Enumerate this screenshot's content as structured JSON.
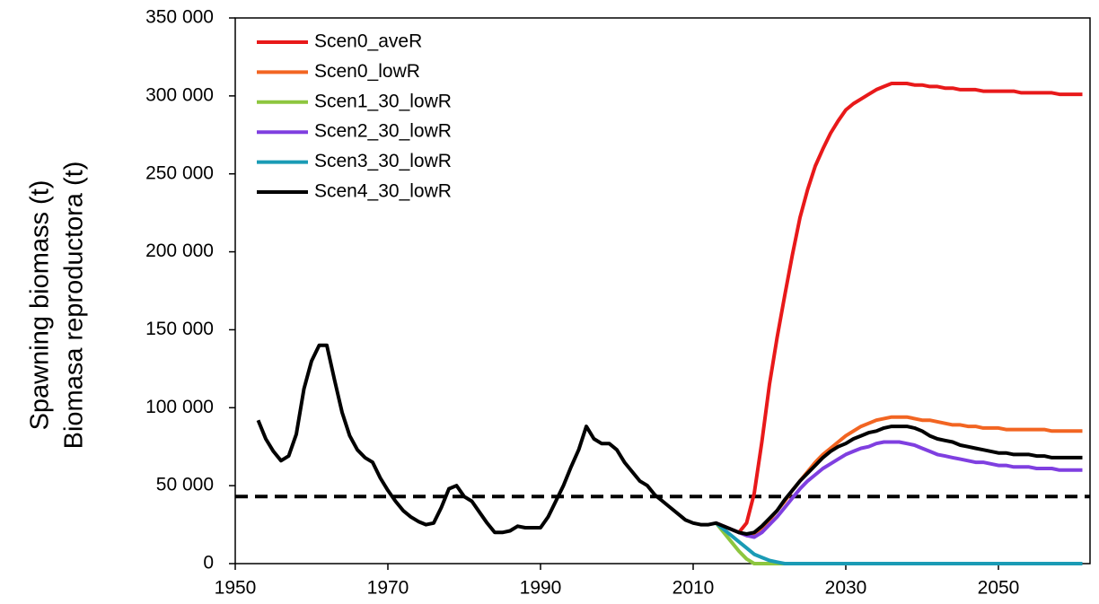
{
  "chart_data": {
    "type": "line",
    "ylabel": [
      "Spawning  biomass (t)",
      "Biomasa reproductora (t)"
    ],
    "xlim": [
      1950,
      2062
    ],
    "xticks": [
      1950,
      1970,
      1990,
      2010,
      2030,
      2050
    ],
    "ylim": [
      0,
      350000
    ],
    "yticks": [
      0,
      {
        "value": 50000,
        "label": "50 000"
      },
      {
        "value": 100000,
        "label": "100 000"
      },
      {
        "value": 150000,
        "label": "150 000"
      },
      {
        "value": 200000,
        "label": "200 000"
      },
      {
        "value": 250000,
        "label": "250 000"
      },
      {
        "value": 300000,
        "label": "300 000"
      },
      {
        "value": 350000,
        "label": "350 000"
      }
    ],
    "legend": "top-left",
    "hlines": [
      {
        "value": 43000,
        "color": "#000000",
        "dashed": true
      }
    ],
    "x": [
      1953,
      1954,
      1955,
      1956,
      1957,
      1958,
      1959,
      1960,
      1961,
      1962,
      1963,
      1964,
      1965,
      1966,
      1967,
      1968,
      1969,
      1970,
      1971,
      1972,
      1973,
      1974,
      1975,
      1976,
      1977,
      1978,
      1979,
      1980,
      1981,
      1982,
      1983,
      1984,
      1985,
      1986,
      1987,
      1988,
      1989,
      1990,
      1991,
      1992,
      1993,
      1994,
      1995,
      1996,
      1997,
      1998,
      1999,
      2000,
      2001,
      2002,
      2003,
      2004,
      2005,
      2006,
      2007,
      2008,
      2009,
      2010,
      2011,
      2012,
      2013,
      2014,
      2015,
      2016,
      2017,
      2018,
      2019,
      2020,
      2021,
      2022,
      2023,
      2024,
      2025,
      2026,
      2027,
      2028,
      2029,
      2030,
      2031,
      2032,
      2033,
      2034,
      2035,
      2036,
      2037,
      2038,
      2039,
      2040,
      2041,
      2042,
      2043,
      2044,
      2045,
      2046,
      2047,
      2048,
      2049,
      2050,
      2051,
      2052,
      2053,
      2054,
      2055,
      2056,
      2057,
      2058,
      2059,
      2060,
      2061
    ],
    "series": [
      {
        "name": "Scen0_aveR",
        "color": "#e8191a",
        "values": [
          null,
          null,
          null,
          null,
          null,
          null,
          null,
          null,
          null,
          null,
          null,
          null,
          null,
          null,
          null,
          null,
          null,
          null,
          null,
          null,
          null,
          null,
          null,
          null,
          null,
          null,
          null,
          null,
          null,
          null,
          null,
          null,
          null,
          null,
          null,
          null,
          null,
          null,
          null,
          null,
          null,
          null,
          null,
          null,
          null,
          null,
          null,
          null,
          null,
          null,
          null,
          null,
          null,
          null,
          null,
          null,
          null,
          null,
          null,
          null,
          26000,
          24000,
          22000,
          20000,
          26000,
          45000,
          78000,
          115000,
          145000,
          172000,
          198000,
          222000,
          240000,
          255000,
          266000,
          276000,
          284000,
          291000,
          295000,
          298000,
          301000,
          304000,
          306000,
          308000,
          308000,
          308000,
          307000,
          307000,
          306000,
          306000,
          305000,
          305000,
          304000,
          304000,
          304000,
          303000,
          303000,
          303000,
          303000,
          303000,
          302000,
          302000,
          302000,
          302000,
          302000,
          301000,
          301000,
          301000,
          301000
        ]
      },
      {
        "name": "Scen0_lowR",
        "color": "#f26522",
        "values": [
          null,
          null,
          null,
          null,
          null,
          null,
          null,
          null,
          null,
          null,
          null,
          null,
          null,
          null,
          null,
          null,
          null,
          null,
          null,
          null,
          null,
          null,
          null,
          null,
          null,
          null,
          null,
          null,
          null,
          null,
          null,
          null,
          null,
          null,
          null,
          null,
          null,
          null,
          null,
          null,
          null,
          null,
          null,
          null,
          null,
          null,
          null,
          null,
          null,
          null,
          null,
          null,
          null,
          null,
          null,
          null,
          null,
          null,
          null,
          null,
          26000,
          24000,
          22000,
          20000,
          18000,
          18000,
          22000,
          28000,
          34000,
          40000,
          47000,
          53000,
          59000,
          65000,
          70000,
          74000,
          78000,
          82000,
          85000,
          88000,
          90000,
          92000,
          93000,
          94000,
          94000,
          94000,
          93000,
          92000,
          92000,
          91000,
          90000,
          89000,
          89000,
          88000,
          88000,
          87000,
          87000,
          87000,
          86000,
          86000,
          86000,
          86000,
          86000,
          86000,
          85000,
          85000,
          85000,
          85000,
          85000
        ]
      },
      {
        "name": "Scen1_30_lowR",
        "color": "#8dc63f",
        "values": [
          null,
          null,
          null,
          null,
          null,
          null,
          null,
          null,
          null,
          null,
          null,
          null,
          null,
          null,
          null,
          null,
          null,
          null,
          null,
          null,
          null,
          null,
          null,
          null,
          null,
          null,
          null,
          null,
          null,
          null,
          null,
          null,
          null,
          null,
          null,
          null,
          null,
          null,
          null,
          null,
          null,
          null,
          null,
          null,
          null,
          null,
          null,
          null,
          null,
          null,
          null,
          null,
          null,
          null,
          null,
          null,
          null,
          null,
          null,
          null,
          26000,
          20000,
          14000,
          8000,
          3000,
          0,
          0,
          0,
          0,
          0,
          0,
          0,
          0,
          0,
          0,
          0,
          0,
          0,
          0,
          0,
          0,
          0,
          0,
          0,
          0,
          0,
          0,
          0,
          0,
          0,
          0,
          0,
          0,
          0,
          0,
          0,
          0,
          0,
          0,
          0,
          0,
          0,
          0,
          0,
          0,
          0,
          0,
          0,
          0
        ]
      },
      {
        "name": "Scen2_30_lowR",
        "color": "#7f3fe0",
        "values": [
          null,
          null,
          null,
          null,
          null,
          null,
          null,
          null,
          null,
          null,
          null,
          null,
          null,
          null,
          null,
          null,
          null,
          null,
          null,
          null,
          null,
          null,
          null,
          null,
          null,
          null,
          null,
          null,
          null,
          null,
          null,
          null,
          null,
          null,
          null,
          null,
          null,
          null,
          null,
          null,
          null,
          null,
          null,
          null,
          null,
          null,
          null,
          null,
          null,
          null,
          null,
          null,
          null,
          null,
          null,
          null,
          null,
          null,
          null,
          null,
          26000,
          24000,
          22000,
          20000,
          18000,
          17000,
          20000,
          25000,
          30000,
          36000,
          42000,
          48000,
          53000,
          57000,
          61000,
          64000,
          67000,
          70000,
          72000,
          74000,
          75000,
          77000,
          78000,
          78000,
          78000,
          77000,
          76000,
          74000,
          72000,
          70000,
          69000,
          68000,
          67000,
          66000,
          65000,
          65000,
          64000,
          63000,
          63000,
          62000,
          62000,
          62000,
          61000,
          61000,
          61000,
          60000,
          60000,
          60000,
          60000
        ]
      },
      {
        "name": "Scen3_30_lowR",
        "color": "#1a9bb5",
        "values": [
          null,
          null,
          null,
          null,
          null,
          null,
          null,
          null,
          null,
          null,
          null,
          null,
          null,
          null,
          null,
          null,
          null,
          null,
          null,
          null,
          null,
          null,
          null,
          null,
          null,
          null,
          null,
          null,
          null,
          null,
          null,
          null,
          null,
          null,
          null,
          null,
          null,
          null,
          null,
          null,
          null,
          null,
          null,
          null,
          null,
          null,
          null,
          null,
          null,
          null,
          null,
          null,
          null,
          null,
          null,
          null,
          null,
          null,
          null,
          null,
          26000,
          22000,
          18000,
          14000,
          10000,
          6000,
          4000,
          2000,
          1000,
          0,
          0,
          0,
          0,
          0,
          0,
          0,
          0,
          0,
          0,
          0,
          0,
          0,
          0,
          0,
          0,
          0,
          0,
          0,
          0,
          0,
          0,
          0,
          0,
          0,
          0,
          0,
          0,
          0,
          0,
          0,
          0,
          0,
          0,
          0,
          0,
          0,
          0,
          0,
          0
        ]
      },
      {
        "name": "Scen4_30_lowR",
        "color": "#000000",
        "values": [
          92000,
          80000,
          72000,
          66000,
          69000,
          83000,
          112000,
          130000,
          140000,
          140000,
          118000,
          97000,
          82000,
          73000,
          68000,
          65000,
          55000,
          47000,
          40000,
          34000,
          30000,
          27000,
          25000,
          26000,
          36000,
          48000,
          50000,
          43000,
          40000,
          33000,
          26000,
          20000,
          20000,
          21000,
          24000,
          23000,
          23000,
          23000,
          30000,
          40000,
          50000,
          62000,
          73000,
          88000,
          80000,
          77000,
          77000,
          73000,
          65000,
          59000,
          53000,
          50000,
          44000,
          40000,
          36000,
          32000,
          28000,
          26000,
          25000,
          25000,
          26000,
          24000,
          22000,
          20000,
          19000,
          20000,
          24000,
          29000,
          34000,
          41000,
          47000,
          53000,
          58000,
          63000,
          68000,
          72000,
          75000,
          77000,
          80000,
          82000,
          84000,
          85000,
          87000,
          88000,
          88000,
          88000,
          87000,
          85000,
          82000,
          80000,
          79000,
          78000,
          76000,
          75000,
          74000,
          73000,
          72000,
          71000,
          71000,
          70000,
          70000,
          70000,
          69000,
          69000,
          68000,
          68000,
          68000,
          68000,
          68000
        ]
      }
    ]
  }
}
